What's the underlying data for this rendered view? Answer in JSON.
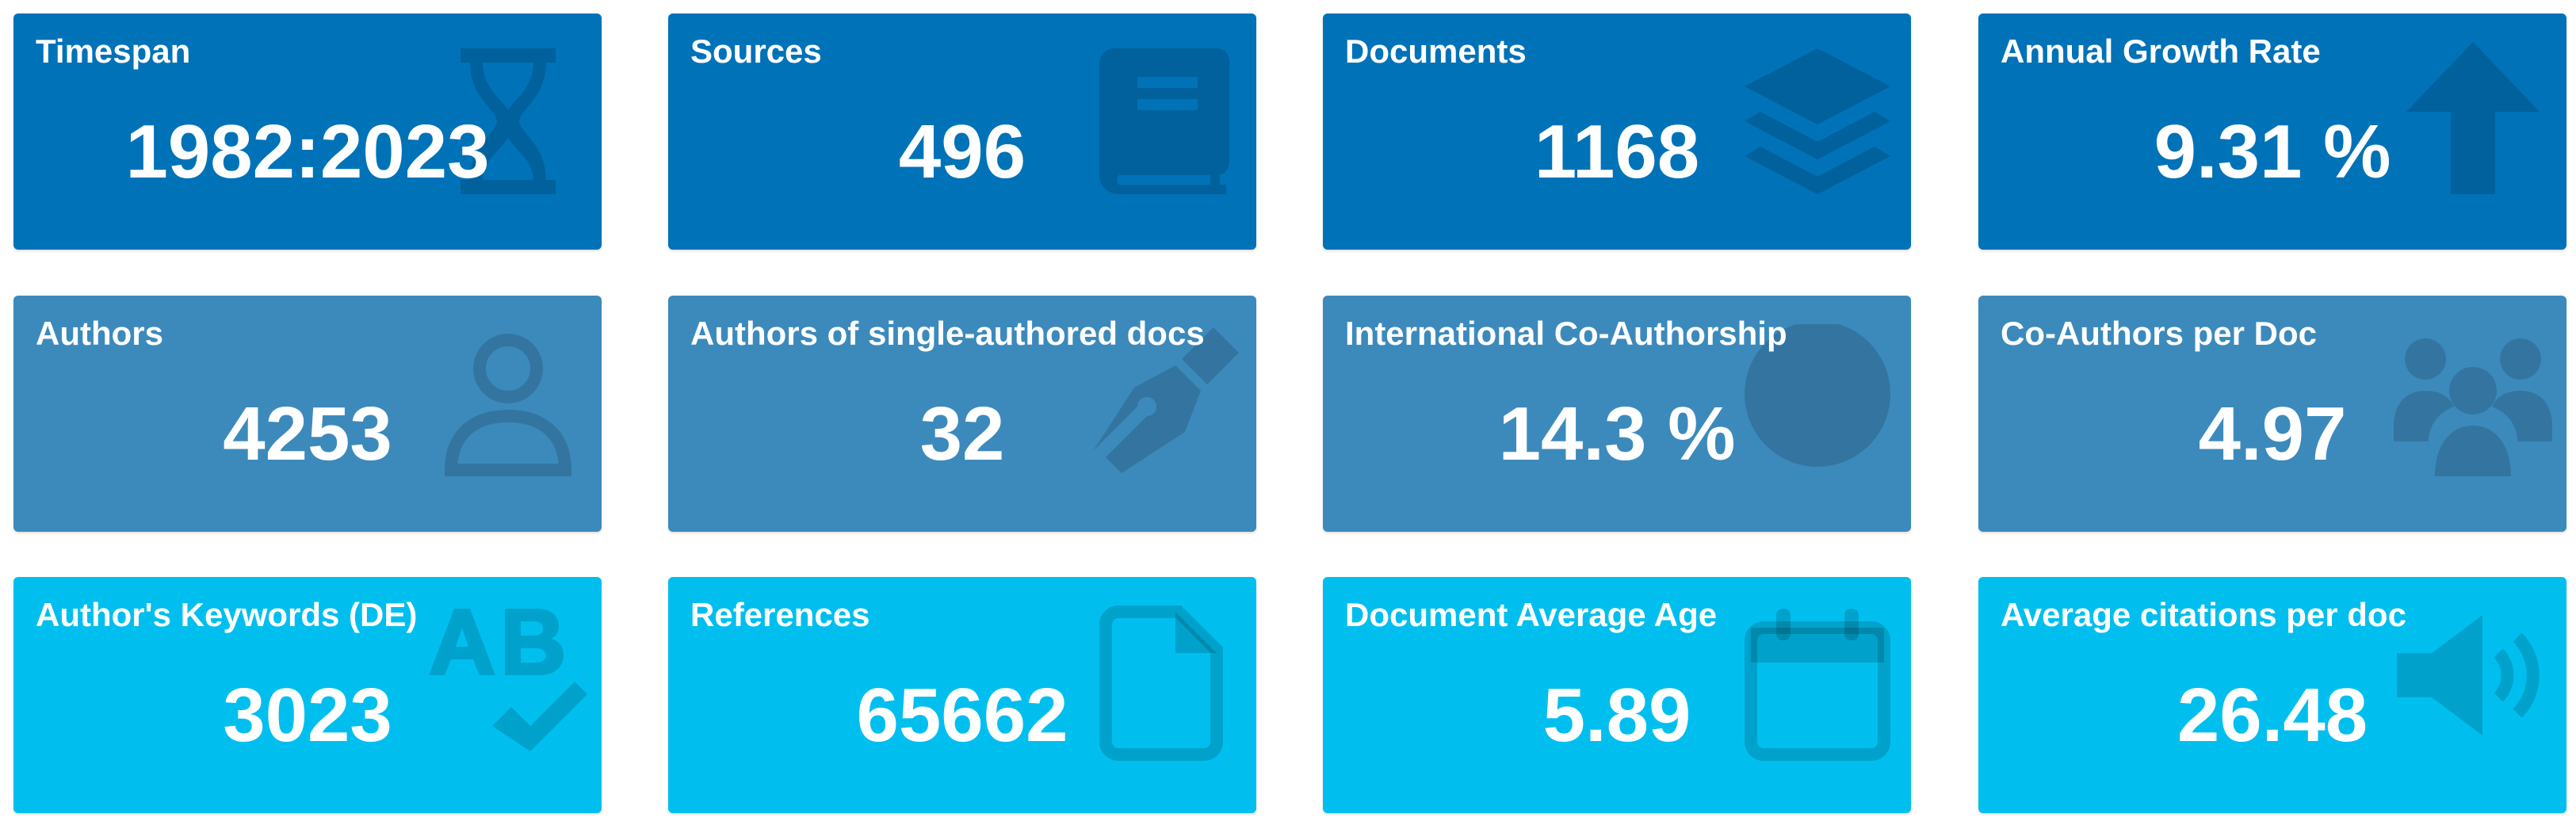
{
  "cards": [
    {
      "title": "Timespan",
      "value": "1982:2023"
    },
    {
      "title": "Sources",
      "value": "496"
    },
    {
      "title": "Documents",
      "value": "1168"
    },
    {
      "title": "Annual Growth Rate",
      "value": "9.31 %"
    },
    {
      "title": "Authors",
      "value": "4253"
    },
    {
      "title": "Authors of single-authored docs",
      "value": "32"
    },
    {
      "title": "International Co-Authorship",
      "value": "14.3 %"
    },
    {
      "title": "Co-Authors per Doc",
      "value": "4.97"
    },
    {
      "title": "Author's Keywords (DE)",
      "value": "3023"
    },
    {
      "title": "References",
      "value": "65662"
    },
    {
      "title": "Document Average Age",
      "value": "5.89"
    },
    {
      "title": "Average citations per doc",
      "value": "26.48"
    }
  ]
}
